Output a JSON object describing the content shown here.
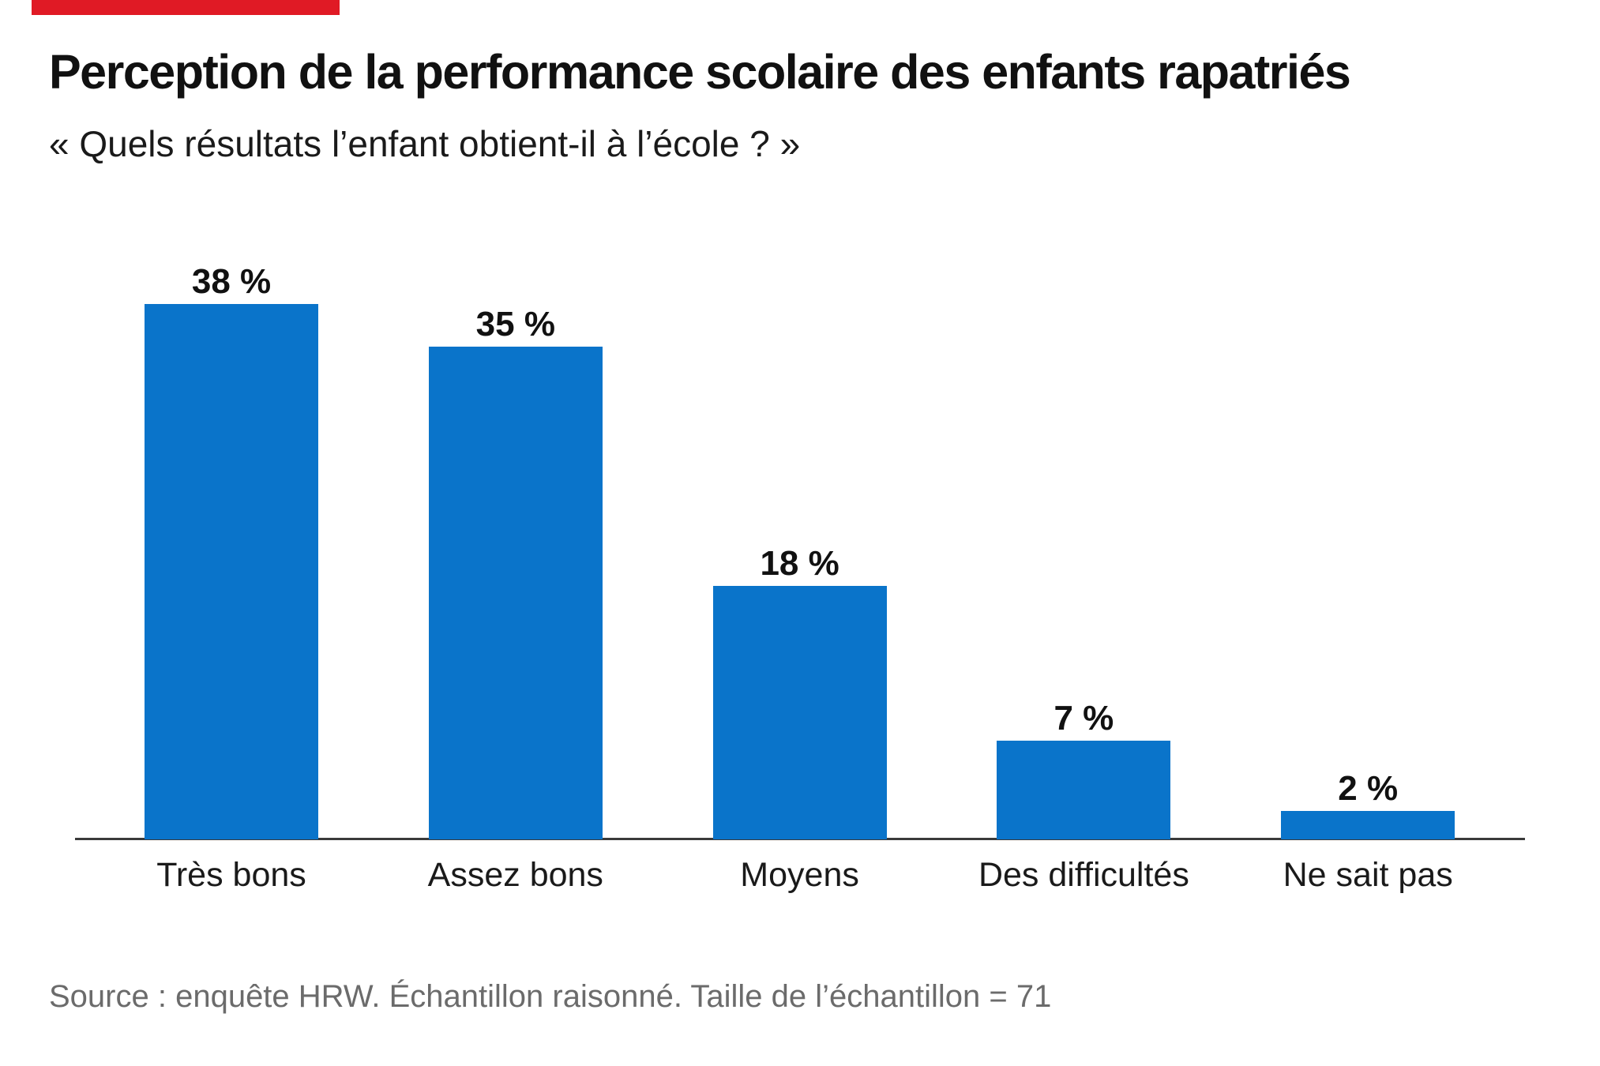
{
  "brand": {
    "accent_color": "#e01a25",
    "name": "HRW"
  },
  "header": {
    "title": "Perception de la performance scolaire des enfants rapatriés",
    "subtitle": "« Quels résultats l’enfant obtient-il à l’école ? »"
  },
  "footer": {
    "source": "Source : enquête HRW. Échantillon raisonné. Taille de l’échantillon = 71"
  },
  "colors": {
    "bar": "#0a74ca",
    "axis": "#3a3a3a",
    "text": "#1a1a1a",
    "muted_text": "#6b6b6b",
    "background": "#ffffff"
  },
  "chart_data": {
    "type": "bar",
    "title": "Perception de la performance scolaire des enfants rapatriés",
    "subtitle": "« Quels résultats l’enfant obtient-il à l’école ? »",
    "categories": [
      "Très bons",
      "Assez bons",
      "Moyens",
      "Des difficultés",
      "Ne sait pas"
    ],
    "values": [
      38,
      35,
      18,
      7,
      2
    ],
    "value_labels": [
      "38 %",
      "35 %",
      "18 %",
      "7 %",
      "2 %"
    ],
    "xlabel": "",
    "ylabel": "",
    "ylim": [
      0,
      40
    ],
    "grid": false,
    "legend": "none",
    "sample_size_note": "Taille de l’échantillon = 71"
  }
}
